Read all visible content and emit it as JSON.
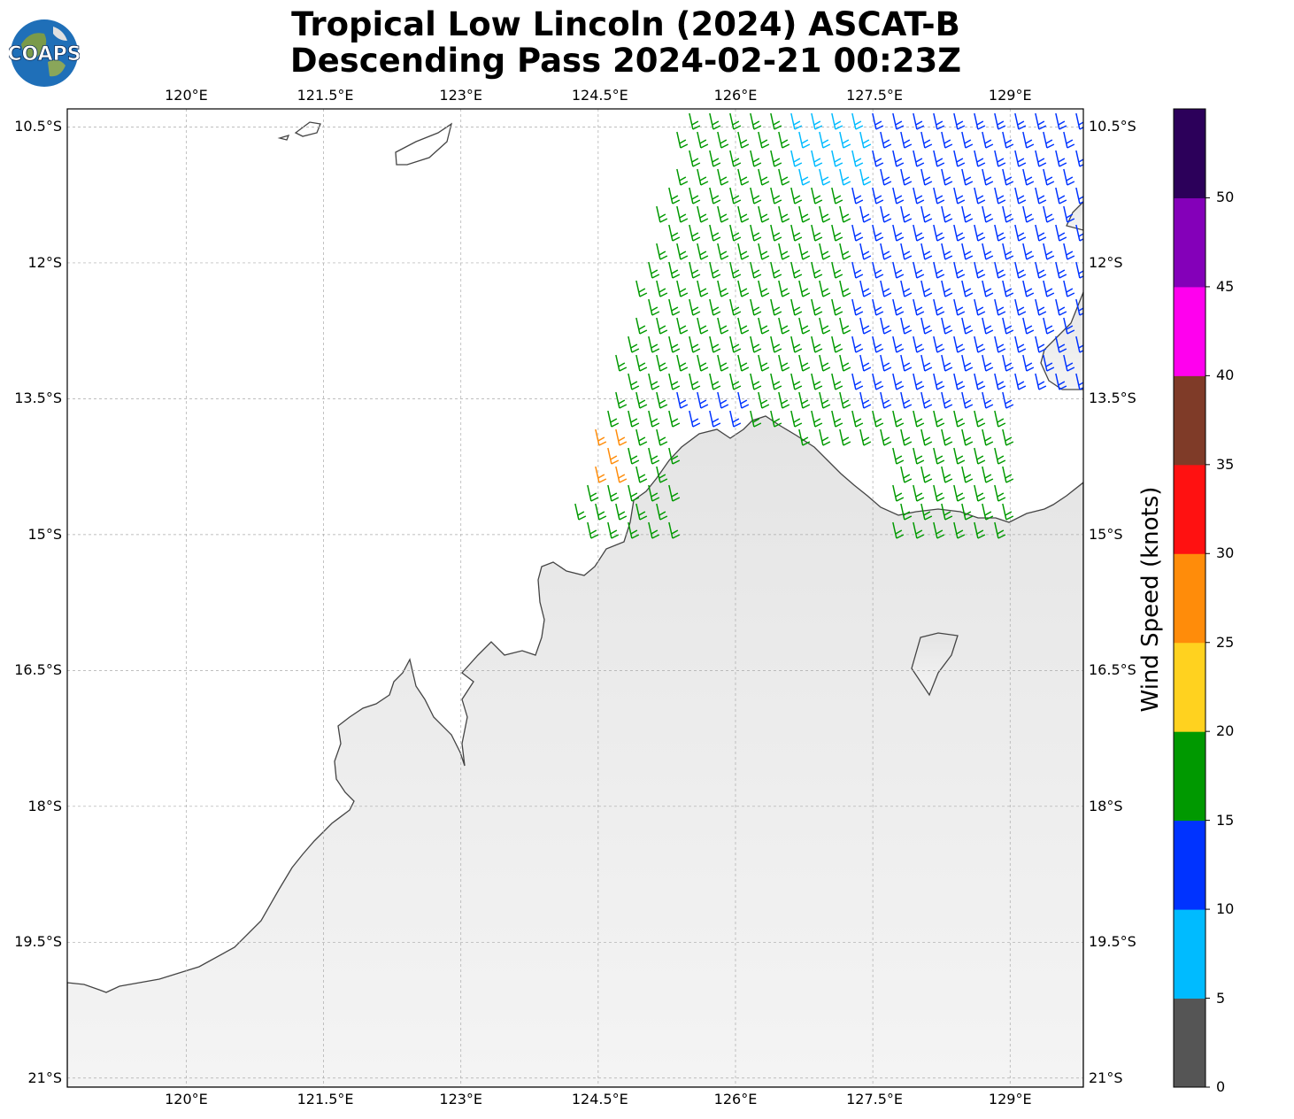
{
  "header": {
    "title_line1": "Tropical Low Lincoln (2024) ASCAT-B",
    "title_line2": "Descending Pass 2024-02-21 00:23Z",
    "logo_text": "COAPS"
  },
  "map": {
    "lon_range": [
      118.7,
      129.8
    ],
    "lat_range": [
      -10.3,
      -21.1
    ],
    "lon_labels": [
      "120°E",
      "121.5°E",
      "123°E",
      "124.5°E",
      "126°E",
      "127.5°E",
      "129°E"
    ],
    "lat_labels": [
      "10.5°S",
      "12°S",
      "13.5°S",
      "15°S",
      "16.5°S",
      "18°S",
      "19.5°S",
      "21°S"
    ],
    "ocean_color": "#ffffff",
    "land_color": "#f0f0f0",
    "coast_color": "#444444",
    "grid": "dashed"
  },
  "colorbar": {
    "title": "Wind Speed (knots)",
    "levels": [
      "0",
      "5",
      "10",
      "15",
      "20",
      "25",
      "30",
      "35",
      "40",
      "45",
      "50"
    ],
    "colors": [
      "#555555",
      "#00bbff",
      "#0033ff",
      "#009900",
      "#ffd21f",
      "#ff8c0a",
      "#ff1111",
      "#7f3b28",
      "#ff00ee",
      "#8400b9",
      "#2c005a"
    ]
  }
}
